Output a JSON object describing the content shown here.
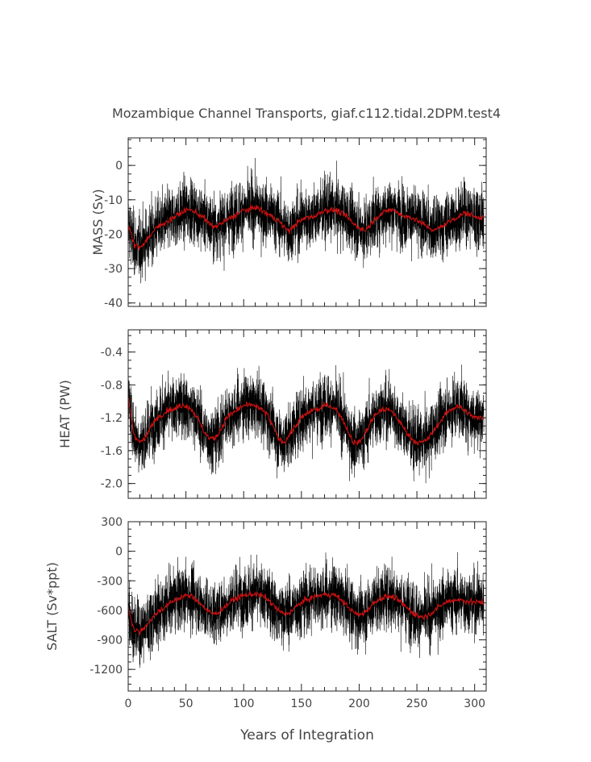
{
  "figure": {
    "title": "Mozambique Channel Transports, giaf.c112.tidal.2DPM.test4",
    "xlabel": "Years of Integration"
  },
  "colors": {
    "raw_series": "#000000",
    "smoothed_series": "#cc1111",
    "axes": "#222222",
    "text": "#444444"
  },
  "chart_data": [
    {
      "type": "line",
      "ylabel": "MASS (Sv)",
      "xlim": [
        0,
        310
      ],
      "ylim": [
        -41,
        8
      ],
      "xticks": [
        "0",
        "50",
        "100",
        "150",
        "200",
        "250",
        "300"
      ],
      "yticks": [
        "0",
        "-10",
        "-20",
        "-30",
        "-40"
      ],
      "ytick_values": [
        0,
        -10,
        -20,
        -30,
        -40
      ],
      "grid": false,
      "series": [
        {
          "style": "thin black line, monthly values",
          "mean": -17,
          "noise_range": [
            -42,
            8
          ]
        },
        {
          "style": "red smoothed line",
          "x": [
            0,
            5,
            10,
            15,
            20,
            25,
            30,
            35,
            40,
            45,
            50,
            55,
            60,
            65,
            70,
            75,
            80,
            85,
            90,
            95,
            100,
            105,
            110,
            115,
            120,
            125,
            130,
            135,
            140,
            145,
            150,
            155,
            160,
            165,
            170,
            175,
            180,
            185,
            190,
            195,
            200,
            205,
            210,
            215,
            220,
            225,
            230,
            235,
            240,
            245,
            250,
            255,
            260,
            265,
            270,
            275,
            280,
            285,
            290,
            295,
            300,
            305,
            308
          ],
          "values": [
            -17,
            -23,
            -24,
            -22,
            -20,
            -18,
            -17,
            -16,
            -15,
            -14,
            -13,
            -13,
            -14,
            -15,
            -17,
            -18,
            -17,
            -16,
            -15,
            -14,
            -13,
            -13,
            -12,
            -13,
            -14,
            -15,
            -16,
            -18,
            -19,
            -17,
            -16,
            -15,
            -15,
            -14,
            -13,
            -13,
            -13,
            -14,
            -15,
            -17,
            -18,
            -19,
            -17,
            -15,
            -14,
            -13,
            -13,
            -14,
            -15,
            -15,
            -16,
            -17,
            -18,
            -19,
            -18,
            -17,
            -16,
            -15,
            -14,
            -14,
            -15,
            -15,
            -15
          ]
        }
      ]
    },
    {
      "type": "line",
      "ylabel": "HEAT (PW)",
      "xlim": [
        0,
        310
      ],
      "ylim": [
        -2.18,
        -0.13
      ],
      "xticks": [
        "0",
        "50",
        "100",
        "150",
        "200",
        "250",
        "300"
      ],
      "yticks": [
        "-0.4",
        "-0.8",
        "-1.2",
        "-1.6",
        "-2.0"
      ],
      "ytick_values": [
        -0.4,
        -0.8,
        -1.2,
        -1.6,
        -2.0
      ],
      "grid": false,
      "series": [
        {
          "style": "thin black line, monthly values",
          "mean": -1.3,
          "noise_range": [
            -2.15,
            -0.15
          ]
        },
        {
          "style": "red smoothed line",
          "x": [
            0,
            5,
            10,
            15,
            20,
            25,
            30,
            35,
            40,
            45,
            50,
            55,
            60,
            65,
            70,
            75,
            80,
            85,
            90,
            95,
            100,
            105,
            110,
            115,
            120,
            125,
            130,
            135,
            140,
            145,
            150,
            155,
            160,
            165,
            170,
            175,
            180,
            185,
            190,
            195,
            200,
            205,
            210,
            215,
            220,
            225,
            230,
            235,
            240,
            245,
            250,
            255,
            260,
            265,
            270,
            275,
            280,
            285,
            290,
            295,
            300,
            305,
            308
          ],
          "values": [
            -0.95,
            -1.4,
            -1.5,
            -1.45,
            -1.3,
            -1.2,
            -1.15,
            -1.1,
            -1.1,
            -1.05,
            -1.05,
            -1.1,
            -1.2,
            -1.35,
            -1.45,
            -1.45,
            -1.35,
            -1.2,
            -1.15,
            -1.1,
            -1.05,
            -1.05,
            -1.05,
            -1.1,
            -1.15,
            -1.3,
            -1.45,
            -1.5,
            -1.4,
            -1.3,
            -1.2,
            -1.15,
            -1.1,
            -1.1,
            -1.05,
            -1.05,
            -1.1,
            -1.2,
            -1.35,
            -1.5,
            -1.5,
            -1.4,
            -1.25,
            -1.15,
            -1.1,
            -1.1,
            -1.15,
            -1.25,
            -1.35,
            -1.45,
            -1.5,
            -1.5,
            -1.45,
            -1.35,
            -1.25,
            -1.15,
            -1.1,
            -1.05,
            -1.1,
            -1.15,
            -1.2,
            -1.2,
            -1.2
          ]
        }
      ]
    },
    {
      "type": "line",
      "ylabel": "SALT (Sv*ppt)",
      "xlim": [
        0,
        310
      ],
      "ylim": [
        -1420,
        300
      ],
      "xticks": [
        "0",
        "50",
        "100",
        "150",
        "200",
        "250",
        "300"
      ],
      "yticks": [
        "300",
        "0",
        "-300",
        "-600",
        "-900",
        "-1200"
      ],
      "ytick_values": [
        300,
        0,
        -300,
        -600,
        -900,
        -1200
      ],
      "grid": false,
      "series": [
        {
          "style": "thin black line, monthly values",
          "mean": -560,
          "noise_range": [
            -1420,
            290
          ]
        },
        {
          "style": "red smoothed line",
          "x": [
            0,
            5,
            10,
            15,
            20,
            25,
            30,
            35,
            40,
            45,
            50,
            55,
            60,
            65,
            70,
            75,
            80,
            85,
            90,
            95,
            100,
            105,
            110,
            115,
            120,
            125,
            130,
            135,
            140,
            145,
            150,
            155,
            160,
            165,
            170,
            175,
            180,
            185,
            190,
            195,
            200,
            205,
            210,
            215,
            220,
            225,
            230,
            235,
            240,
            245,
            250,
            255,
            260,
            265,
            270,
            275,
            280,
            285,
            290,
            295,
            300,
            305,
            308
          ],
          "values": [
            -560,
            -800,
            -820,
            -760,
            -690,
            -620,
            -580,
            -540,
            -500,
            -470,
            -450,
            -460,
            -500,
            -560,
            -620,
            -640,
            -600,
            -550,
            -500,
            -470,
            -450,
            -440,
            -430,
            -450,
            -480,
            -540,
            -600,
            -640,
            -620,
            -570,
            -520,
            -490,
            -470,
            -450,
            -440,
            -440,
            -450,
            -500,
            -560,
            -620,
            -650,
            -620,
            -560,
            -500,
            -470,
            -460,
            -470,
            -510,
            -560,
            -610,
            -650,
            -670,
            -650,
            -600,
            -560,
            -520,
            -500,
            -490,
            -500,
            -510,
            -520,
            -520,
            -520
          ]
        }
      ]
    }
  ]
}
